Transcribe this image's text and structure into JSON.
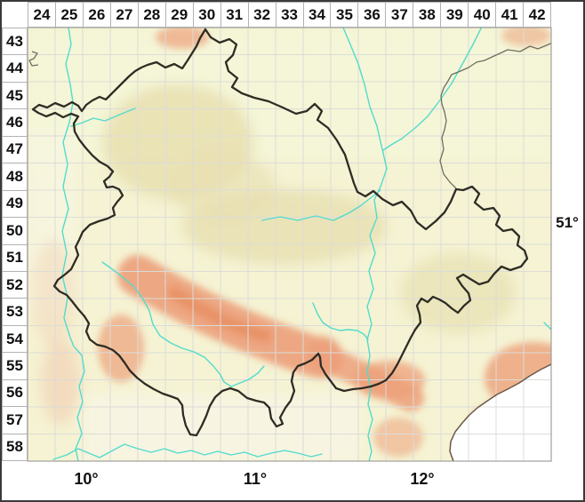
{
  "frame": {
    "top_labels": [
      "24",
      "25",
      "26",
      "27",
      "28",
      "29",
      "30",
      "31",
      "32",
      "33",
      "34",
      "35",
      "36",
      "37",
      "38",
      "39",
      "40",
      "41",
      "42"
    ],
    "left_labels": [
      "43",
      "44",
      "45",
      "46",
      "47",
      "48",
      "49",
      "50",
      "51",
      "52",
      "53",
      "54",
      "55",
      "56",
      "57",
      "58"
    ],
    "right_degree_label": "51°",
    "bottom_degree_labels": [
      "10°",
      "11°",
      "12°"
    ]
  },
  "map": {
    "colors": {
      "outer_border": "#3a3a3a",
      "label_text": "#111111",
      "cell_border": "#b2b2b2",
      "frame_line": "#8e8e8e",
      "grid_line": "#dcdcd8",
      "terrain_base": "#f5f3d3",
      "terrain_low_green": "#f3f6d9",
      "terrain_mid_tan": "#e7dfb0",
      "terrain_high_salmon": "#eca07a",
      "terrain_high_core": "#e68d62",
      "terrain_pink": "#f2cdb0",
      "terrain_outside_pale": "#f8f5e6",
      "nodata_white": "#ffffff",
      "river": "#52dbcd",
      "state_boundary": "#2e2c24",
      "minor_boundary": "#6f6f60",
      "national_boundary": "#6a584a"
    }
  }
}
